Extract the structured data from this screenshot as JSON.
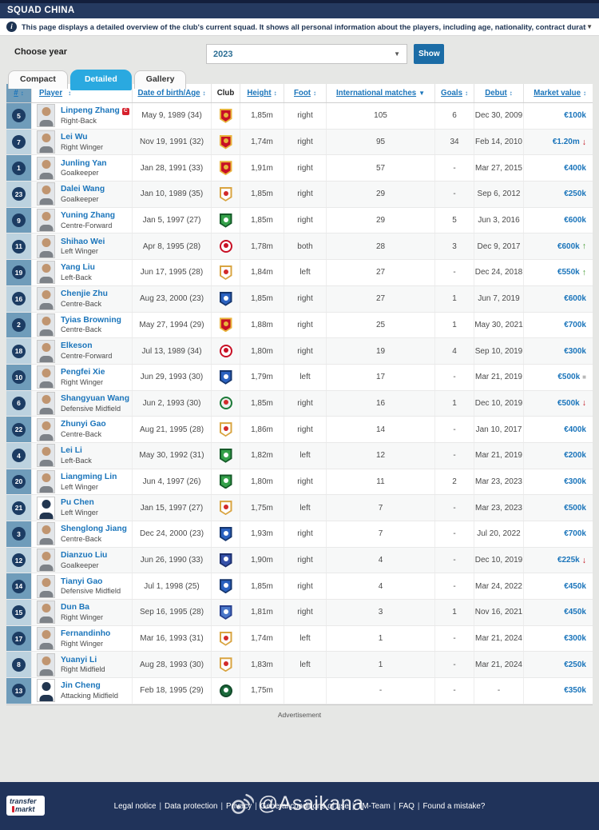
{
  "header": {
    "title": "SQUAD CHINA"
  },
  "info_bar": {
    "text": "This page displays a detailed overview of the club's current squad. It shows all personal information about the players, including age, nationality, contract duration and market value. It also contains a table with average age...",
    "collapse_icon": "▼"
  },
  "controls": {
    "choose_year_label": "Choose year",
    "year_value": "2023",
    "year_dropdown_icon": "▼",
    "show_button": "Show"
  },
  "tabs": [
    {
      "label": "Compact",
      "active": false
    },
    {
      "label": "Detailed",
      "active": true
    },
    {
      "label": "Gallery",
      "active": false
    }
  ],
  "icons": {
    "sortable": "↕",
    "sorted": "▼",
    "trend_up": "↑",
    "trend_down": "↓",
    "trend_flat": "■"
  },
  "colors": {
    "accent_blue": "#1b75bb",
    "tab_active": "#2aa9e0",
    "navy": "#20335a",
    "value_up": "#3c962a",
    "value_down": "#c1121c",
    "badge": "#1c3c63"
  },
  "table": {
    "columns": [
      {
        "label": "#",
        "sortable": true
      },
      {
        "label": "Player",
        "sortable": true
      },
      {
        "label": "Date of birth/Age",
        "sortable": true
      },
      {
        "label": "Club",
        "sortable": false
      },
      {
        "label": "Height",
        "sortable": true
      },
      {
        "label": "Foot",
        "sortable": true
      },
      {
        "label": "International matches",
        "sortable": true,
        "sorted": true
      },
      {
        "label": "Goals",
        "sortable": true
      },
      {
        "label": "Debut",
        "sortable": true
      },
      {
        "label": "Market value",
        "sortable": true
      }
    ],
    "clubs": {
      "shanghai-port": {
        "shape": "shield",
        "outer": "#e8b43c",
        "inner": "#c81025",
        "dot": "#e8b43c"
      },
      "shandong-taishan": {
        "shape": "shield",
        "outer": "#d9a441",
        "inner": "#ffffff",
        "dot": "#d22a2a"
      },
      "beijing-guoan": {
        "shape": "shield",
        "outer": "#145a28",
        "inner": "#35a14a",
        "dot": "#ffffff"
      },
      "chengdu-rongcheng": {
        "shape": "circle",
        "outer": "#c81025",
        "inner": "#ffffff",
        "dot": "#c81025"
      },
      "shanghai-shenhua": {
        "shape": "shield",
        "outer": "#16366e",
        "inner": "#2b62c0",
        "dot": "#ffffff"
      },
      "henan": {
        "shape": "circle",
        "outer": "#1c7a38",
        "inner": "#eeeeee",
        "dot": "#d22a2a"
      },
      "tianjin": {
        "shape": "shield",
        "outer": "#1c2f6e",
        "inner": "#3551a8",
        "dot": "#ffffff"
      },
      "qingdao": {
        "shape": "shield",
        "outer": "#27408f",
        "inner": "#4a77c9",
        "dot": "#ffffff"
      },
      "zhejiang": {
        "shape": "circle",
        "outer": "#124a2a",
        "inner": "#1c6b3c",
        "dot": "#ffffff"
      }
    },
    "rows": [
      {
        "number": "5",
        "name": "Linpeng Zhang",
        "captain": true,
        "position": "Right-Back",
        "dob": "May 9, 1989 (34)",
        "club": "shanghai-port",
        "height": "1,85m",
        "foot": "right",
        "matches": "105",
        "goals": "6",
        "debut": "Dec 30, 2009",
        "value": "€100k",
        "trend": ""
      },
      {
        "number": "7",
        "name": "Lei Wu",
        "captain": false,
        "position": "Right Winger",
        "dob": "Nov 19, 1991 (32)",
        "club": "shanghai-port",
        "height": "1,74m",
        "foot": "right",
        "matches": "95",
        "goals": "34",
        "debut": "Feb 14, 2010",
        "value": "€1.20m",
        "trend": "down"
      },
      {
        "number": "1",
        "name": "Junling Yan",
        "captain": false,
        "position": "Goalkeeper",
        "dob": "Jan 28, 1991 (33)",
        "club": "shanghai-port",
        "height": "1,91m",
        "foot": "right",
        "matches": "57",
        "goals": "-",
        "debut": "Mar 27, 2015",
        "value": "€400k",
        "trend": ""
      },
      {
        "number": "23",
        "name": "Dalei Wang",
        "captain": false,
        "position": "Goalkeeper",
        "dob": "Jan 10, 1989 (35)",
        "club": "shandong-taishan",
        "height": "1,85m",
        "foot": "right",
        "matches": "29",
        "goals": "-",
        "debut": "Sep 6, 2012",
        "value": "€250k",
        "trend": ""
      },
      {
        "number": "9",
        "name": "Yuning Zhang",
        "captain": false,
        "position": "Centre-Forward",
        "dob": "Jan 5, 1997 (27)",
        "club": "beijing-guoan",
        "height": "1,85m",
        "foot": "right",
        "matches": "29",
        "goals": "5",
        "debut": "Jun 3, 2016",
        "value": "€600k",
        "trend": ""
      },
      {
        "number": "11",
        "name": "Shihao Wei",
        "captain": false,
        "position": "Left Winger",
        "dob": "Apr 8, 1995 (28)",
        "club": "chengdu-rongcheng",
        "height": "1,78m",
        "foot": "both",
        "matches": "28",
        "goals": "3",
        "debut": "Dec 9, 2017",
        "value": "€600k",
        "trend": "up"
      },
      {
        "number": "19",
        "name": "Yang Liu",
        "captain": false,
        "position": "Left-Back",
        "dob": "Jun 17, 1995 (28)",
        "club": "shandong-taishan",
        "height": "1,84m",
        "foot": "left",
        "matches": "27",
        "goals": "-",
        "debut": "Dec 24, 2018",
        "value": "€550k",
        "trend": "up"
      },
      {
        "number": "16",
        "name": "Chenjie Zhu",
        "captain": false,
        "position": "Centre-Back",
        "dob": "Aug 23, 2000 (23)",
        "club": "shanghai-shenhua",
        "height": "1,85m",
        "foot": "right",
        "matches": "27",
        "goals": "1",
        "debut": "Jun 7, 2019",
        "value": "€600k",
        "trend": ""
      },
      {
        "number": "2",
        "name": "Tyias Browning",
        "captain": false,
        "position": "Centre-Back",
        "dob": "May 27, 1994 (29)",
        "club": "shanghai-port",
        "height": "1,88m",
        "foot": "right",
        "matches": "25",
        "goals": "1",
        "debut": "May 30, 2021",
        "value": "€700k",
        "trend": ""
      },
      {
        "number": "18",
        "name": "Elkeson",
        "captain": false,
        "position": "Centre-Forward",
        "dob": "Jul 13, 1989 (34)",
        "club": "chengdu-rongcheng",
        "height": "1,80m",
        "foot": "right",
        "matches": "19",
        "goals": "4",
        "debut": "Sep 10, 2019",
        "value": "€300k",
        "trend": ""
      },
      {
        "number": "10",
        "name": "Pengfei Xie",
        "captain": false,
        "position": "Right Winger",
        "dob": "Jun 29, 1993 (30)",
        "club": "shanghai-shenhua",
        "height": "1,79m",
        "foot": "left",
        "matches": "17",
        "goals": "-",
        "debut": "Mar 21, 2019",
        "value": "€500k",
        "trend": "flat"
      },
      {
        "number": "6",
        "name": "Shangyuan Wang",
        "captain": false,
        "position": "Defensive Midfield",
        "dob": "Jun 2, 1993 (30)",
        "club": "henan",
        "height": "1,85m",
        "foot": "right",
        "matches": "16",
        "goals": "1",
        "debut": "Dec 10, 2019",
        "value": "€500k",
        "trend": "down"
      },
      {
        "number": "22",
        "name": "Zhunyi Gao",
        "captain": false,
        "position": "Centre-Back",
        "dob": "Aug 21, 1995 (28)",
        "club": "shandong-taishan",
        "height": "1,86m",
        "foot": "right",
        "matches": "14",
        "goals": "-",
        "debut": "Jan 10, 2017",
        "value": "€400k",
        "trend": ""
      },
      {
        "number": "4",
        "name": "Lei Li",
        "captain": false,
        "position": "Left-Back",
        "dob": "May 30, 1992 (31)",
        "club": "beijing-guoan",
        "height": "1,82m",
        "foot": "left",
        "matches": "12",
        "goals": "-",
        "debut": "Mar 21, 2019",
        "value": "€200k",
        "trend": ""
      },
      {
        "number": "20",
        "name": "Liangming Lin",
        "captain": false,
        "position": "Left Winger",
        "dob": "Jun 4, 1997 (26)",
        "club": "beijing-guoan",
        "height": "1,80m",
        "foot": "right",
        "matches": "11",
        "goals": "2",
        "debut": "Mar 23, 2023",
        "value": "€300k",
        "trend": ""
      },
      {
        "number": "21",
        "name": "Pu Chen",
        "captain": false,
        "position": "Left Winger",
        "dob": "Jan 15, 1997 (27)",
        "club": "shandong-taishan",
        "height": "1,75m",
        "foot": "left",
        "matches": "7",
        "goals": "-",
        "debut": "Mar 23, 2023",
        "value": "€500k",
        "trend": "",
        "silhouette": true
      },
      {
        "number": "3",
        "name": "Shenglong Jiang",
        "captain": false,
        "position": "Centre-Back",
        "dob": "Dec 24, 2000 (23)",
        "club": "shanghai-shenhua",
        "height": "1,93m",
        "foot": "right",
        "matches": "7",
        "goals": "-",
        "debut": "Jul 20, 2022",
        "value": "€700k",
        "trend": ""
      },
      {
        "number": "12",
        "name": "Dianzuo Liu",
        "captain": false,
        "position": "Goalkeeper",
        "dob": "Jun 26, 1990 (33)",
        "club": "tianjin",
        "height": "1,90m",
        "foot": "right",
        "matches": "4",
        "goals": "-",
        "debut": "Dec 10, 2019",
        "value": "€225k",
        "trend": "down"
      },
      {
        "number": "14",
        "name": "Tianyi Gao",
        "captain": false,
        "position": "Defensive Midfield",
        "dob": "Jul 1, 1998 (25)",
        "club": "shanghai-shenhua",
        "height": "1,85m",
        "foot": "right",
        "matches": "4",
        "goals": "-",
        "debut": "Mar 24, 2022",
        "value": "€450k",
        "trend": ""
      },
      {
        "number": "15",
        "name": "Dun Ba",
        "captain": false,
        "position": "Right Winger",
        "dob": "Sep 16, 1995 (28)",
        "club": "qingdao",
        "height": "1,81m",
        "foot": "right",
        "matches": "3",
        "goals": "1",
        "debut": "Nov 16, 2021",
        "value": "€450k",
        "trend": ""
      },
      {
        "number": "17",
        "name": "Fernandinho",
        "captain": false,
        "position": "Right Winger",
        "dob": "Mar 16, 1993 (31)",
        "club": "shandong-taishan",
        "height": "1,74m",
        "foot": "left",
        "matches": "1",
        "goals": "-",
        "debut": "Mar 21, 2024",
        "value": "€300k",
        "trend": ""
      },
      {
        "number": "8",
        "name": "Yuanyi Li",
        "captain": false,
        "position": "Right Midfield",
        "dob": "Aug 28, 1993 (30)",
        "club": "shandong-taishan",
        "height": "1,83m",
        "foot": "left",
        "matches": "1",
        "goals": "-",
        "debut": "Mar 21, 2024",
        "value": "€250k",
        "trend": ""
      },
      {
        "number": "13",
        "name": "Jin Cheng",
        "captain": false,
        "position": "Attacking Midfield",
        "dob": "Feb 18, 1995 (29)",
        "club": "zhejiang",
        "height": "1,75m",
        "foot": "",
        "matches": "-",
        "goals": "-",
        "debut": "-",
        "value": "€350k",
        "trend": "",
        "silhouette": true
      }
    ]
  },
  "advertisement_label": "Advertisement",
  "footer": {
    "logo_line1": "transfer",
    "logo_line2": "markt",
    "links": [
      "Legal notice",
      "Data protection",
      "Privacy",
      "General conditions of use",
      "TM-Team",
      "FAQ",
      "Found a mistake?"
    ]
  },
  "watermark": "@Asaikana"
}
